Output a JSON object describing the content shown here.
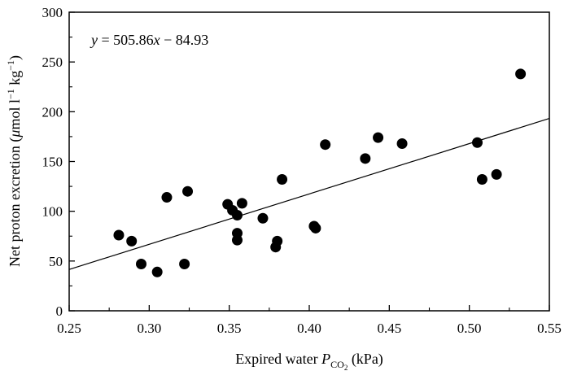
{
  "chart_data": {
    "type": "scatter",
    "title": "",
    "xlabel_parts": {
      "before": "Expired water ",
      "symbol": "P",
      "sub": "CO",
      "subsub": "2",
      "after": " (kPa)"
    },
    "ylabel_parts": {
      "before": "Net proton excretion (",
      "mu": "μ",
      "unit": "mol l",
      "e1": "−1",
      "unit2": " kg",
      "e2": "−1",
      "after": ")"
    },
    "xlim": [
      0.25,
      0.55
    ],
    "ylim": [
      0,
      300
    ],
    "x_ticks": [
      0.25,
      0.3,
      0.35,
      0.4,
      0.45,
      0.5,
      0.55
    ],
    "x_tick_labels": [
      "0.25",
      "0.30",
      "0.35",
      "0.40",
      "0.45",
      "0.50",
      "0.55"
    ],
    "y_ticks": [
      0,
      50,
      100,
      150,
      200,
      250,
      300
    ],
    "y_tick_labels": [
      "0",
      "50",
      "100",
      "150",
      "200",
      "250",
      "300"
    ],
    "equation": {
      "y": "y",
      "eq": " = 505.86",
      "x": "x",
      "rest": " − 84.93"
    },
    "regression": {
      "slope": 505.86,
      "intercept": -84.93
    },
    "points": [
      {
        "x": 0.281,
        "y": 76
      },
      {
        "x": 0.289,
        "y": 70
      },
      {
        "x": 0.295,
        "y": 47
      },
      {
        "x": 0.305,
        "y": 39
      },
      {
        "x": 0.311,
        "y": 114
      },
      {
        "x": 0.322,
        "y": 47
      },
      {
        "x": 0.324,
        "y": 120
      },
      {
        "x": 0.349,
        "y": 107
      },
      {
        "x": 0.352,
        "y": 101
      },
      {
        "x": 0.355,
        "y": 96
      },
      {
        "x": 0.355,
        "y": 78
      },
      {
        "x": 0.355,
        "y": 71
      },
      {
        "x": 0.358,
        "y": 108
      },
      {
        "x": 0.371,
        "y": 93
      },
      {
        "x": 0.379,
        "y": 64
      },
      {
        "x": 0.38,
        "y": 70
      },
      {
        "x": 0.383,
        "y": 132
      },
      {
        "x": 0.403,
        "y": 85
      },
      {
        "x": 0.404,
        "y": 83
      },
      {
        "x": 0.41,
        "y": 167
      },
      {
        "x": 0.435,
        "y": 153
      },
      {
        "x": 0.443,
        "y": 174
      },
      {
        "x": 0.458,
        "y": 168
      },
      {
        "x": 0.505,
        "y": 169
      },
      {
        "x": 0.508,
        "y": 132
      },
      {
        "x": 0.517,
        "y": 137
      },
      {
        "x": 0.532,
        "y": 238
      }
    ]
  }
}
